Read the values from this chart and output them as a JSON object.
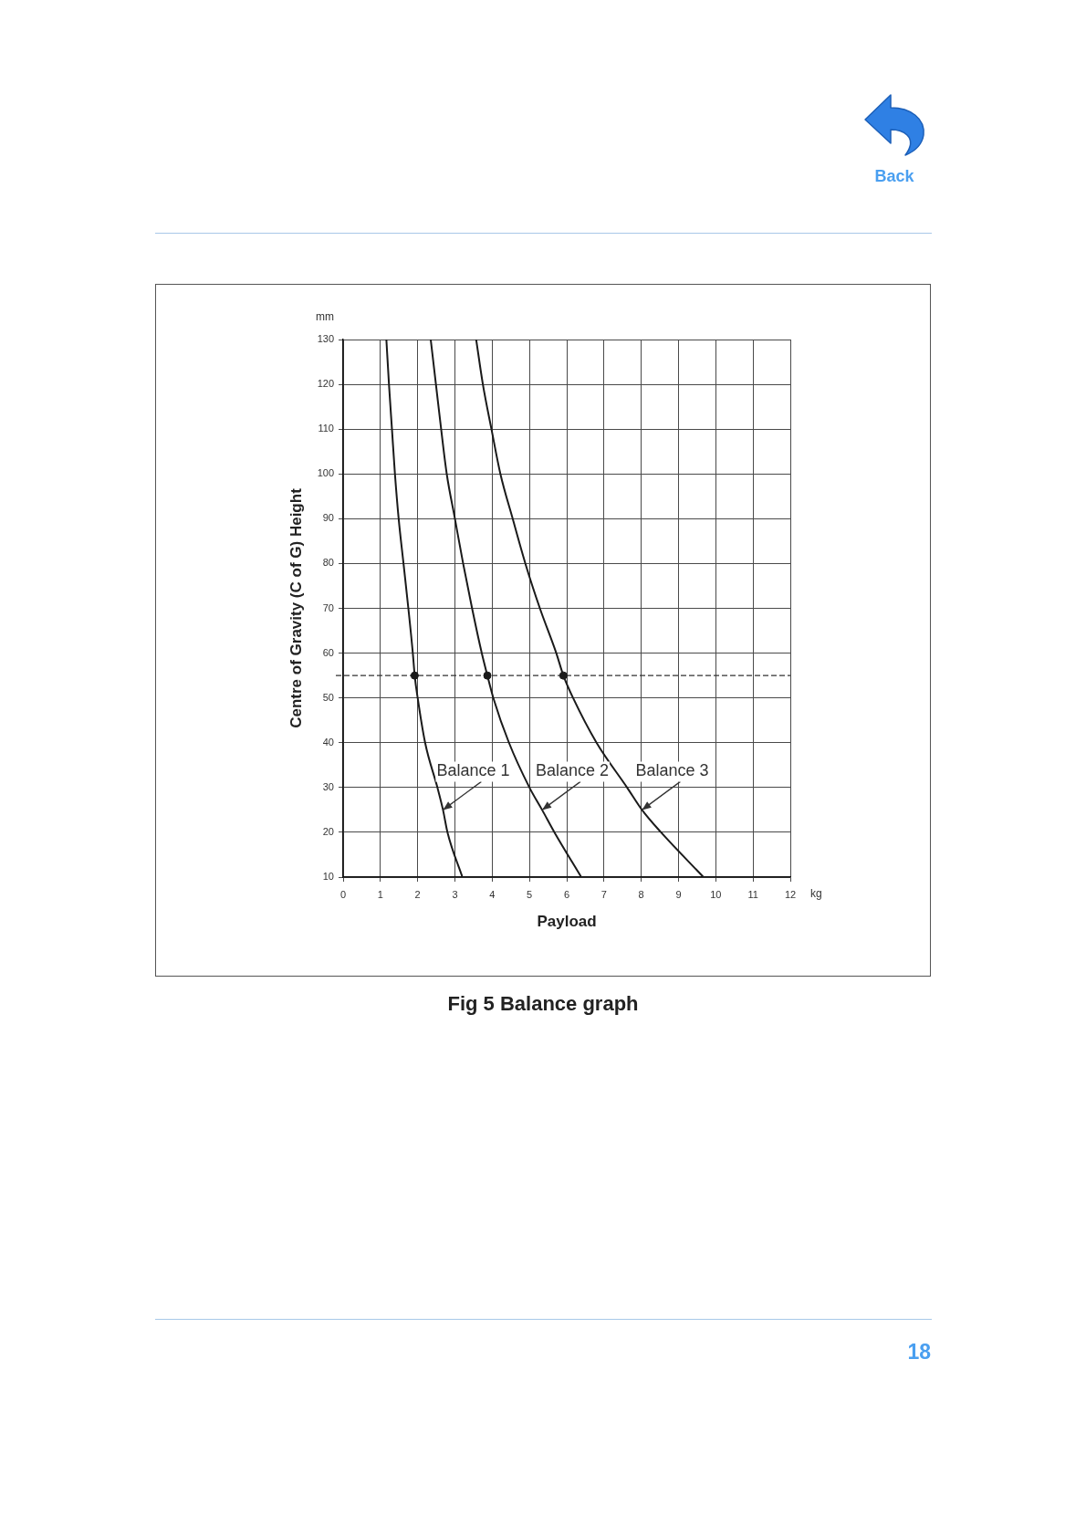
{
  "chart_data": {
    "type": "line",
    "xlabel": "Payload",
    "ylabel": "Centre of Gravity (C of G) Height",
    "xlim": [
      0,
      12
    ],
    "xticks": [
      0,
      1,
      2,
      3,
      4,
      5,
      6,
      7,
      8,
      9,
      10,
      11,
      12
    ],
    "ylim": [
      10,
      130
    ],
    "yticks": [
      10,
      20,
      30,
      40,
      50,
      60,
      70,
      80,
      90,
      100,
      110,
      120,
      130
    ],
    "grid": true,
    "series": [
      {
        "type": "line",
        "color": "#1a1a1a",
        "x": [
          1.16,
          1.23,
          1.31,
          1.39,
          1.49,
          1.62,
          1.75,
          1.87,
          1.92,
          2.0,
          2.2,
          2.53,
          2.68,
          2.8,
          3.2
        ],
        "values": [
          130,
          120,
          110,
          100,
          90,
          80,
          70,
          60,
          55,
          50,
          40,
          30,
          25,
          20,
          10
        ]
      },
      {
        "type": "line",
        "color": "#1a1a1a",
        "x": [
          2.35,
          2.49,
          2.63,
          2.78,
          3.0,
          3.22,
          3.46,
          3.72,
          3.87,
          4.03,
          4.45,
          5.0,
          5.34,
          5.67,
          6.39
        ],
        "values": [
          130,
          120,
          110,
          100,
          90,
          80,
          70,
          60,
          55,
          50,
          40,
          30,
          25,
          20,
          10
        ]
      },
      {
        "type": "line",
        "color": "#1a1a1a",
        "x": [
          3.57,
          3.75,
          3.98,
          4.22,
          4.55,
          4.89,
          5.28,
          5.72,
          5.91,
          6.17,
          6.8,
          7.62,
          8.02,
          8.53,
          9.67
        ],
        "values": [
          130,
          120,
          110,
          100,
          90,
          80,
          70,
          60,
          55,
          50,
          40,
          30,
          25,
          20,
          10
        ]
      },
      {
        "type": "scatter",
        "color": "#1a1a1a",
        "marker": "circle",
        "x": [
          1.92,
          3.87,
          5.91
        ],
        "values": [
          55,
          55,
          55
        ]
      }
    ],
    "ref_lines": [
      {
        "axis": "y",
        "value": 55,
        "line_style": "dashed",
        "color": "#333333"
      }
    ],
    "annotations": [
      "mm",
      "kg",
      {
        "text": "Balance 1",
        "x": 2.68,
        "y": 25
      },
      {
        "text": "Balance 2",
        "x": 5.34,
        "y": 25
      },
      {
        "text": "Balance 3",
        "x": 8.02,
        "y": 25
      },
      "Fig 5  Balance graph",
      "Back",
      "18"
    ]
  }
}
